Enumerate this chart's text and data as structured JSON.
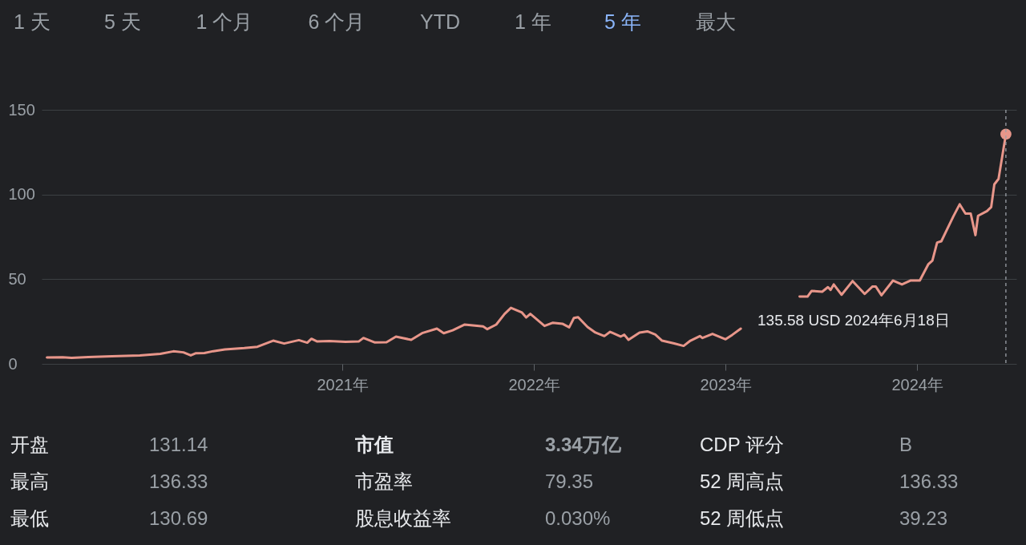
{
  "chart_data": {
    "type": "line",
    "x": [
      "2019-06-18",
      "2019-07-18",
      "2019-08-04",
      "2019-09-05",
      "2019-10-20",
      "2019-12-12",
      "2020-01-20",
      "2020-02-14",
      "2020-03-04",
      "2020-03-18",
      "2020-03-28",
      "2020-04-13",
      "2020-04-30",
      "2020-05-22",
      "2020-06-28",
      "2020-07-23",
      "2020-08-22",
      "2020-09-12",
      "2020-10-10",
      "2020-10-26",
      "2020-11-03",
      "2020-11-14",
      "2020-12-07",
      "2021-01-07",
      "2021-02-01",
      "2021-02-10",
      "2021-03-04",
      "2021-03-26",
      "2021-04-13",
      "2021-05-12",
      "2021-06-03",
      "2021-06-30",
      "2021-07-13",
      "2021-07-30",
      "2021-08-22",
      "2021-09-26",
      "2021-10-04",
      "2021-10-21",
      "2021-11-06",
      "2021-11-18",
      "2021-12-09",
      "2021-12-17",
      "2021-12-25",
      "2022-01-21",
      "2022-02-06",
      "2022-02-24",
      "2022-03-09",
      "2022-03-18",
      "2022-03-26",
      "2022-04-13",
      "2022-04-28",
      "2022-05-15",
      "2022-05-26",
      "2022-06-15",
      "2022-06-22",
      "2022-06-30",
      "2022-07-21",
      "2022-08-05",
      "2022-08-20",
      "2022-09-02",
      "2022-09-25",
      "2022-10-13",
      "2022-10-26",
      "2022-11-13",
      "2022-11-18",
      "2022-12-07",
      "2023-01-01",
      "2023-01-14",
      "2023-01-30",
      "2023-03-20",
      "2023-05-22",
      "2023-06-06",
      "2023-06-14",
      "2023-07-04",
      "2023-07-15",
      "2023-07-20",
      "2023-07-26",
      "2023-08-10",
      "2023-08-31",
      "2023-09-23",
      "2023-10-08",
      "2023-10-14",
      "2023-10-25",
      "2023-11-16",
      "2023-12-03",
      "2023-12-19",
      "2024-01-06",
      "2024-01-22",
      "2024-01-30",
      "2024-02-08",
      "2024-02-16",
      "2024-03-10",
      "2024-03-22",
      "2024-04-02",
      "2024-04-12",
      "2024-04-21",
      "2024-04-26",
      "2024-05-13",
      "2024-05-21",
      "2024-05-27",
      "2024-06-04",
      "2024-06-18"
    ],
    "series": [
      {
        "color": "#e8968a",
        "values": [
          3.8,
          3.9,
          3.6,
          4.0,
          4.5,
          5.0,
          5.9,
          7.4,
          6.8,
          5.0,
          6.3,
          6.4,
          7.5,
          8.5,
          9.3,
          10.1,
          13.7,
          12.0,
          14.0,
          12.5,
          14.8,
          13.2,
          13.5,
          13.0,
          13.2,
          15.3,
          12.6,
          12.8,
          16.1,
          14.2,
          18.3,
          20.8,
          18.1,
          19.8,
          23.2,
          22.1,
          20.5,
          23.2,
          29.5,
          33.1,
          30.3,
          27.4,
          29.5,
          22.4,
          24.3,
          23.7,
          21.6,
          27.1,
          27.6,
          21.8,
          18.5,
          16.4,
          18.9,
          16.1,
          17.2,
          14.2,
          18.5,
          19.2,
          17.3,
          13.7,
          12.1,
          10.6,
          13.7,
          16.4,
          15.3,
          17.7,
          14.5,
          17.2,
          20.8,
          null,
          39.8,
          39.7,
          43.1,
          42.6,
          45.3,
          43.7,
          46.9,
          40.8,
          48.9,
          41.3,
          45.7,
          45.7,
          40.5,
          49.2,
          46.9,
          49.2,
          49.2,
          58.7,
          61.0,
          71.6,
          72.4,
          87.1,
          94.2,
          88.7,
          88.7,
          76.0,
          87.4,
          90.2,
          92.6,
          106,
          109.2,
          135.6
        ]
      },
      {
        "type": "scatter",
        "color": "#e8968a",
        "x": [
          "2024-06-18"
        ],
        "values": [
          135.6
        ]
      }
    ],
    "xlim": [
      "2019-06-08",
      "2024-07-08"
    ],
    "xticks": [
      {
        "value": "2021-01-01",
        "label": "2021年"
      },
      {
        "value": "2022-01-01",
        "label": "2022年"
      },
      {
        "value": "2023-01-01",
        "label": "2023年"
      },
      {
        "value": "2024-01-01",
        "label": "2024年"
      }
    ],
    "ylim": [
      0,
      150
    ],
    "yticks": [
      0,
      50,
      100,
      150
    ],
    "grid": "y",
    "ref_lines": [
      {
        "axis": "x",
        "value": "2024-06-18",
        "label": null,
        "color": "#9aa0a6",
        "line_style": "dashed"
      }
    ],
    "annotations": [
      "1 天",
      "5 天",
      "1 个月",
      "6 个月",
      "YTD",
      "1 年",
      "5 年",
      "最大",
      "135.58 USD  2024年6月18日",
      "开盘",
      "131.14",
      "市值",
      "3.34万亿",
      "CDP 评分",
      "B",
      "最高",
      "136.33",
      "市盈率",
      "79.35",
      "52 周高点",
      "136.33",
      "最低",
      "130.69",
      "股息收益率",
      "0.030%",
      "52 周低点",
      "39.23"
    ]
  }
}
